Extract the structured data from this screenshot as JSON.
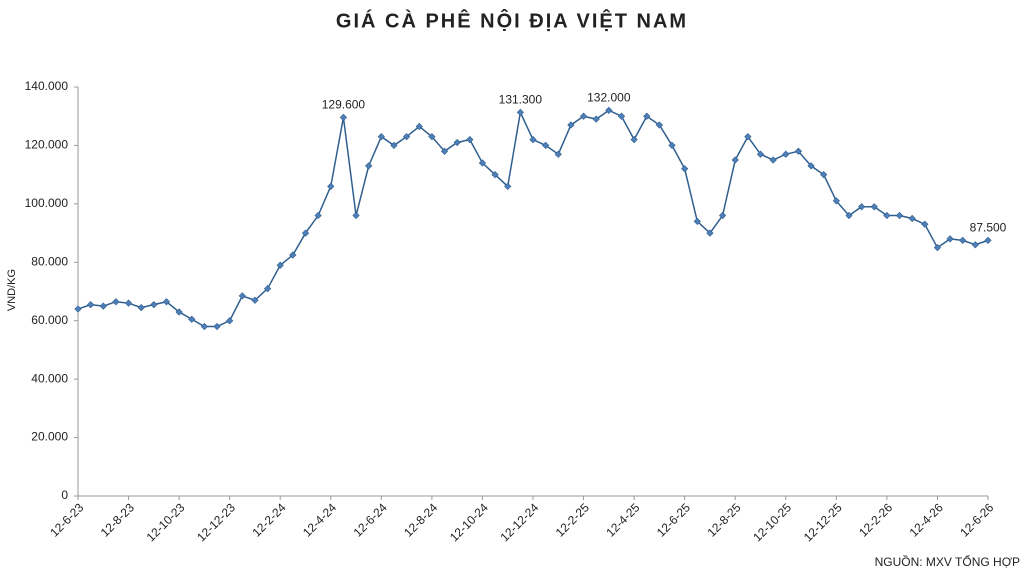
{
  "chart_data": {
    "type": "line",
    "title": "GIÁ CÀ PHÊ NỘI ĐỊA VIỆT NAM",
    "y_label": "VND/KG",
    "source": "NGUỒN: MXV TỔNG HỢP",
    "categories": [
      "12-6-23",
      null,
      null,
      null,
      "12-8-23",
      null,
      null,
      null,
      "12-10-23",
      null,
      null,
      null,
      "12-12-23",
      null,
      null,
      null,
      "12-2-24",
      null,
      null,
      null,
      "12-4-24",
      null,
      null,
      null,
      "12-6-24",
      null,
      null,
      null,
      "12-8-24",
      null,
      null,
      null,
      "12-10-24",
      null,
      null,
      null,
      "12-12-24",
      null,
      null,
      null,
      "12-2-25",
      null,
      null,
      null,
      "12-4-25",
      null,
      null,
      null,
      "12-6-25",
      null,
      null,
      null,
      "12-8-25",
      null,
      null,
      null,
      "12-10-25",
      null,
      null,
      null,
      "12-12-25",
      null,
      null,
      null,
      "12-2-26",
      null,
      null,
      null,
      "12-4-26",
      null,
      null,
      null,
      "12-6-26"
    ],
    "series": [
      {
        "name": "Giá cà phê",
        "color": "#2f5f8f",
        "marker_color": "#4f7fb8",
        "values": [
          64000,
          65500,
          65000,
          66500,
          66000,
          64500,
          65500,
          66500,
          63000,
          60500,
          58000,
          58000,
          60000,
          68500,
          67000,
          71000,
          79000,
          82500,
          90000,
          96000,
          106000,
          129600,
          96000,
          113000,
          123000,
          120000,
          123000,
          126500,
          123000,
          118000,
          121000,
          122000,
          114000,
          110000,
          106000,
          131300,
          122000,
          120000,
          117000,
          127000,
          130000,
          129000,
          132000,
          130000,
          122000,
          130000,
          127000,
          120000,
          112000,
          94000,
          90000,
          96000,
          115000,
          123000,
          117000,
          115000,
          117000,
          118000,
          113000,
          110000,
          101000,
          96000,
          99000,
          99000,
          96000,
          96000,
          95000,
          93000,
          85000,
          88000,
          87500,
          86000,
          87500
        ],
        "value_labels": [
          null,
          null,
          null,
          null,
          null,
          null,
          null,
          null,
          null,
          null,
          null,
          null,
          null,
          null,
          null,
          null,
          null,
          null,
          null,
          null,
          null,
          "129.600",
          null,
          null,
          null,
          null,
          null,
          null,
          null,
          null,
          null,
          null,
          null,
          null,
          null,
          "131.300",
          null,
          null,
          null,
          null,
          null,
          null,
          "132.000",
          null,
          null,
          null,
          null,
          null,
          null,
          null,
          null,
          null,
          null,
          null,
          null,
          null,
          null,
          null,
          null,
          null,
          null,
          null,
          null,
          null,
          null,
          null,
          null,
          null,
          null,
          null,
          null,
          null,
          "87.500"
        ]
      }
    ],
    "ylim": [
      0,
      140000
    ],
    "yticks": [
      0,
      {
        "value": 20000,
        "label": "20.000"
      },
      {
        "value": 40000,
        "label": "40.000"
      },
      {
        "value": 60000,
        "label": "60.000"
      },
      {
        "value": 80000,
        "label": "80.000"
      },
      {
        "value": 100000,
        "label": "100.000"
      },
      {
        "value": 120000,
        "label": "120.000"
      },
      {
        "value": 140000,
        "label": "140.000"
      }
    ],
    "grid": false
  }
}
